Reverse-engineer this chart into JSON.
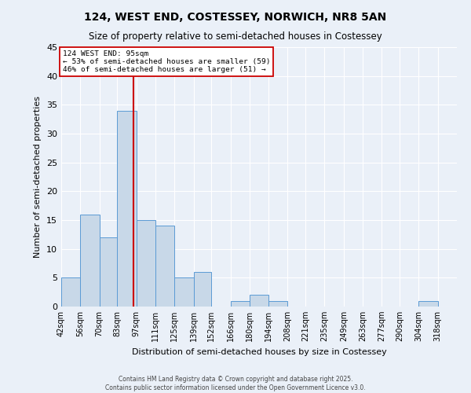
{
  "title1": "124, WEST END, COSTESSEY, NORWICH, NR8 5AN",
  "title2": "Size of property relative to semi-detached houses in Costessey",
  "xlabel": "Distribution of semi-detached houses by size in Costessey",
  "ylabel": "Number of semi-detached properties",
  "bin_labels": [
    "42sqm",
    "56sqm",
    "70sqm",
    "83sqm",
    "97sqm",
    "111sqm",
    "125sqm",
    "139sqm",
    "152sqm",
    "166sqm",
    "180sqm",
    "194sqm",
    "208sqm",
    "221sqm",
    "235sqm",
    "249sqm",
    "263sqm",
    "277sqm",
    "290sqm",
    "304sqm",
    "318sqm"
  ],
  "bin_edges": [
    42,
    56,
    70,
    83,
    97,
    111,
    125,
    139,
    152,
    166,
    180,
    194,
    208,
    221,
    235,
    249,
    263,
    277,
    290,
    304,
    318,
    332
  ],
  "counts": [
    5,
    16,
    12,
    34,
    15,
    14,
    5,
    6,
    0,
    1,
    2,
    1,
    0,
    0,
    0,
    0,
    0,
    0,
    0,
    1,
    0
  ],
  "property_size": 95,
  "property_label": "124 WEST END: 95sqm",
  "pct_smaller": 53,
  "n_smaller": 59,
  "pct_larger": 46,
  "n_larger": 51,
  "bar_color": "#c8d8e8",
  "bar_edge_color": "#5b9bd5",
  "vline_color": "#cc0000",
  "annotation_box_color": "#ffffff",
  "annotation_box_edge": "#cc0000",
  "background_color": "#eaf0f8",
  "grid_color": "#ffffff",
  "ylim": [
    0,
    45
  ],
  "yticks": [
    0,
    5,
    10,
    15,
    20,
    25,
    30,
    35,
    40,
    45
  ],
  "footer1": "Contains HM Land Registry data © Crown copyright and database right 2025.",
  "footer2": "Contains public sector information licensed under the Open Government Licence v3.0."
}
